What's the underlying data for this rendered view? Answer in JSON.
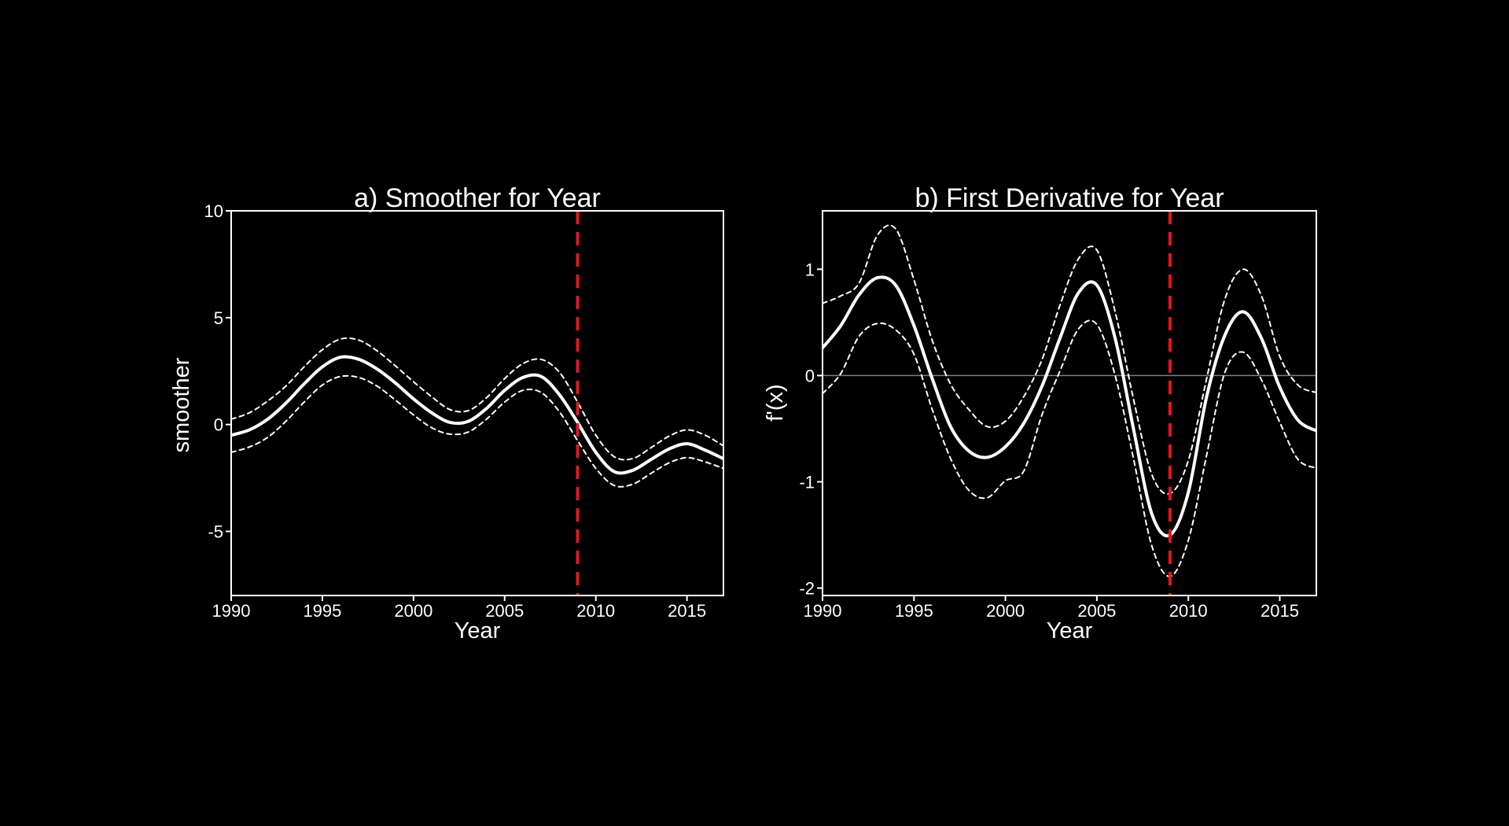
{
  "colors": {
    "background": "#000000",
    "foreground": "#ffffff",
    "marker": "#e8141b",
    "zero_line": "#808080"
  },
  "chart_data": [
    {
      "type": "line",
      "title": "a) Smoother for Year",
      "xlabel": "Year",
      "ylabel": "smoother",
      "xlim": [
        1990,
        2017
      ],
      "ylim": [
        -8.0,
        10.0
      ],
      "xticks": [
        1990,
        1995,
        2000,
        2005,
        2010,
        2015
      ],
      "yticks": [
        10,
        5,
        0,
        -5
      ],
      "ytick_labels": [
        "10",
        "5",
        "0",
        "-5"
      ],
      "vline": 2009,
      "zero_line": false,
      "x": [
        1990,
        1991,
        1992,
        1993,
        1994,
        1995,
        1996,
        1997,
        1998,
        1999,
        2000,
        2001,
        2002,
        2003,
        2004,
        2005,
        2006,
        2007,
        2008,
        2009,
        2010,
        2011,
        2012,
        2013,
        2014,
        2015,
        2016,
        2017
      ],
      "series": [
        {
          "style": "solid",
          "values": [
            -0.5,
            -0.25,
            0.25,
            1.0,
            1.9,
            2.7,
            3.15,
            3.05,
            2.6,
            1.95,
            1.2,
            0.55,
            0.1,
            0.15,
            0.75,
            1.6,
            2.2,
            2.25,
            1.4,
            0.1,
            -1.3,
            -2.2,
            -2.15,
            -1.65,
            -1.15,
            -0.9,
            -1.2,
            -1.6
          ]
        },
        {
          "style": "dashed",
          "values": [
            0.25,
            0.55,
            1.1,
            1.8,
            2.7,
            3.5,
            4.0,
            3.95,
            3.45,
            2.75,
            2.0,
            1.3,
            0.7,
            0.65,
            1.25,
            2.15,
            2.85,
            3.05,
            2.45,
            1.05,
            -0.5,
            -1.5,
            -1.6,
            -1.1,
            -0.55,
            -0.25,
            -0.5,
            -1.0
          ]
        },
        {
          "style": "dashed",
          "values": [
            -1.3,
            -1.05,
            -0.6,
            0.15,
            1.05,
            1.85,
            2.25,
            2.2,
            1.8,
            1.15,
            0.45,
            -0.15,
            -0.45,
            -0.35,
            0.25,
            1.05,
            1.6,
            1.5,
            0.6,
            -0.75,
            -2.05,
            -2.85,
            -2.8,
            -2.3,
            -1.8,
            -1.55,
            -1.75,
            -2.05
          ]
        }
      ]
    },
    {
      "type": "line",
      "title": "b) First Derivative for Year",
      "xlabel": "Year",
      "ylabel": "f'(x)",
      "xlim": [
        1990,
        2017
      ],
      "ylim": [
        -2.07,
        1.55
      ],
      "xticks": [
        1990,
        1995,
        2000,
        2005,
        2010,
        2015
      ],
      "yticks": [
        1,
        0,
        -1,
        -2
      ],
      "ytick_labels": [
        "1",
        "0",
        "-1",
        "-2"
      ],
      "vline": 2009,
      "zero_line": true,
      "x": [
        1990,
        1991,
        1992,
        1993,
        1994,
        1995,
        1996,
        1997,
        1998,
        1999,
        2000,
        2001,
        2002,
        2003,
        2004,
        2005,
        2006,
        2007,
        2008,
        2009,
        2010,
        2011,
        2012,
        2013,
        2014,
        2015,
        2016,
        2017
      ],
      "series": [
        {
          "style": "solid",
          "values": [
            0.26,
            0.47,
            0.76,
            0.92,
            0.85,
            0.47,
            -0.03,
            -0.48,
            -0.71,
            -0.77,
            -0.67,
            -0.45,
            -0.1,
            0.36,
            0.78,
            0.85,
            0.35,
            -0.5,
            -1.3,
            -1.5,
            -1.1,
            -0.2,
            0.38,
            0.6,
            0.35,
            -0.11,
            -0.42,
            -0.52
          ]
        },
        {
          "style": "dashed",
          "values": [
            0.68,
            0.75,
            0.87,
            1.32,
            1.38,
            0.9,
            0.33,
            -0.08,
            -0.32,
            -0.48,
            -0.43,
            -0.2,
            0.15,
            0.67,
            1.1,
            1.18,
            0.6,
            -0.22,
            -0.93,
            -1.11,
            -0.8,
            -0.03,
            0.72,
            1.0,
            0.75,
            0.18,
            -0.09,
            -0.16
          ]
        },
        {
          "style": "dashed",
          "values": [
            -0.17,
            0.02,
            0.37,
            0.49,
            0.43,
            0.2,
            -0.32,
            -0.78,
            -1.08,
            -1.15,
            -0.99,
            -0.9,
            -0.37,
            0.05,
            0.44,
            0.48,
            0.0,
            -0.78,
            -1.6,
            -1.89,
            -1.55,
            -0.75,
            0.03,
            0.22,
            -0.04,
            -0.44,
            -0.79,
            -0.87
          ]
        }
      ]
    }
  ]
}
